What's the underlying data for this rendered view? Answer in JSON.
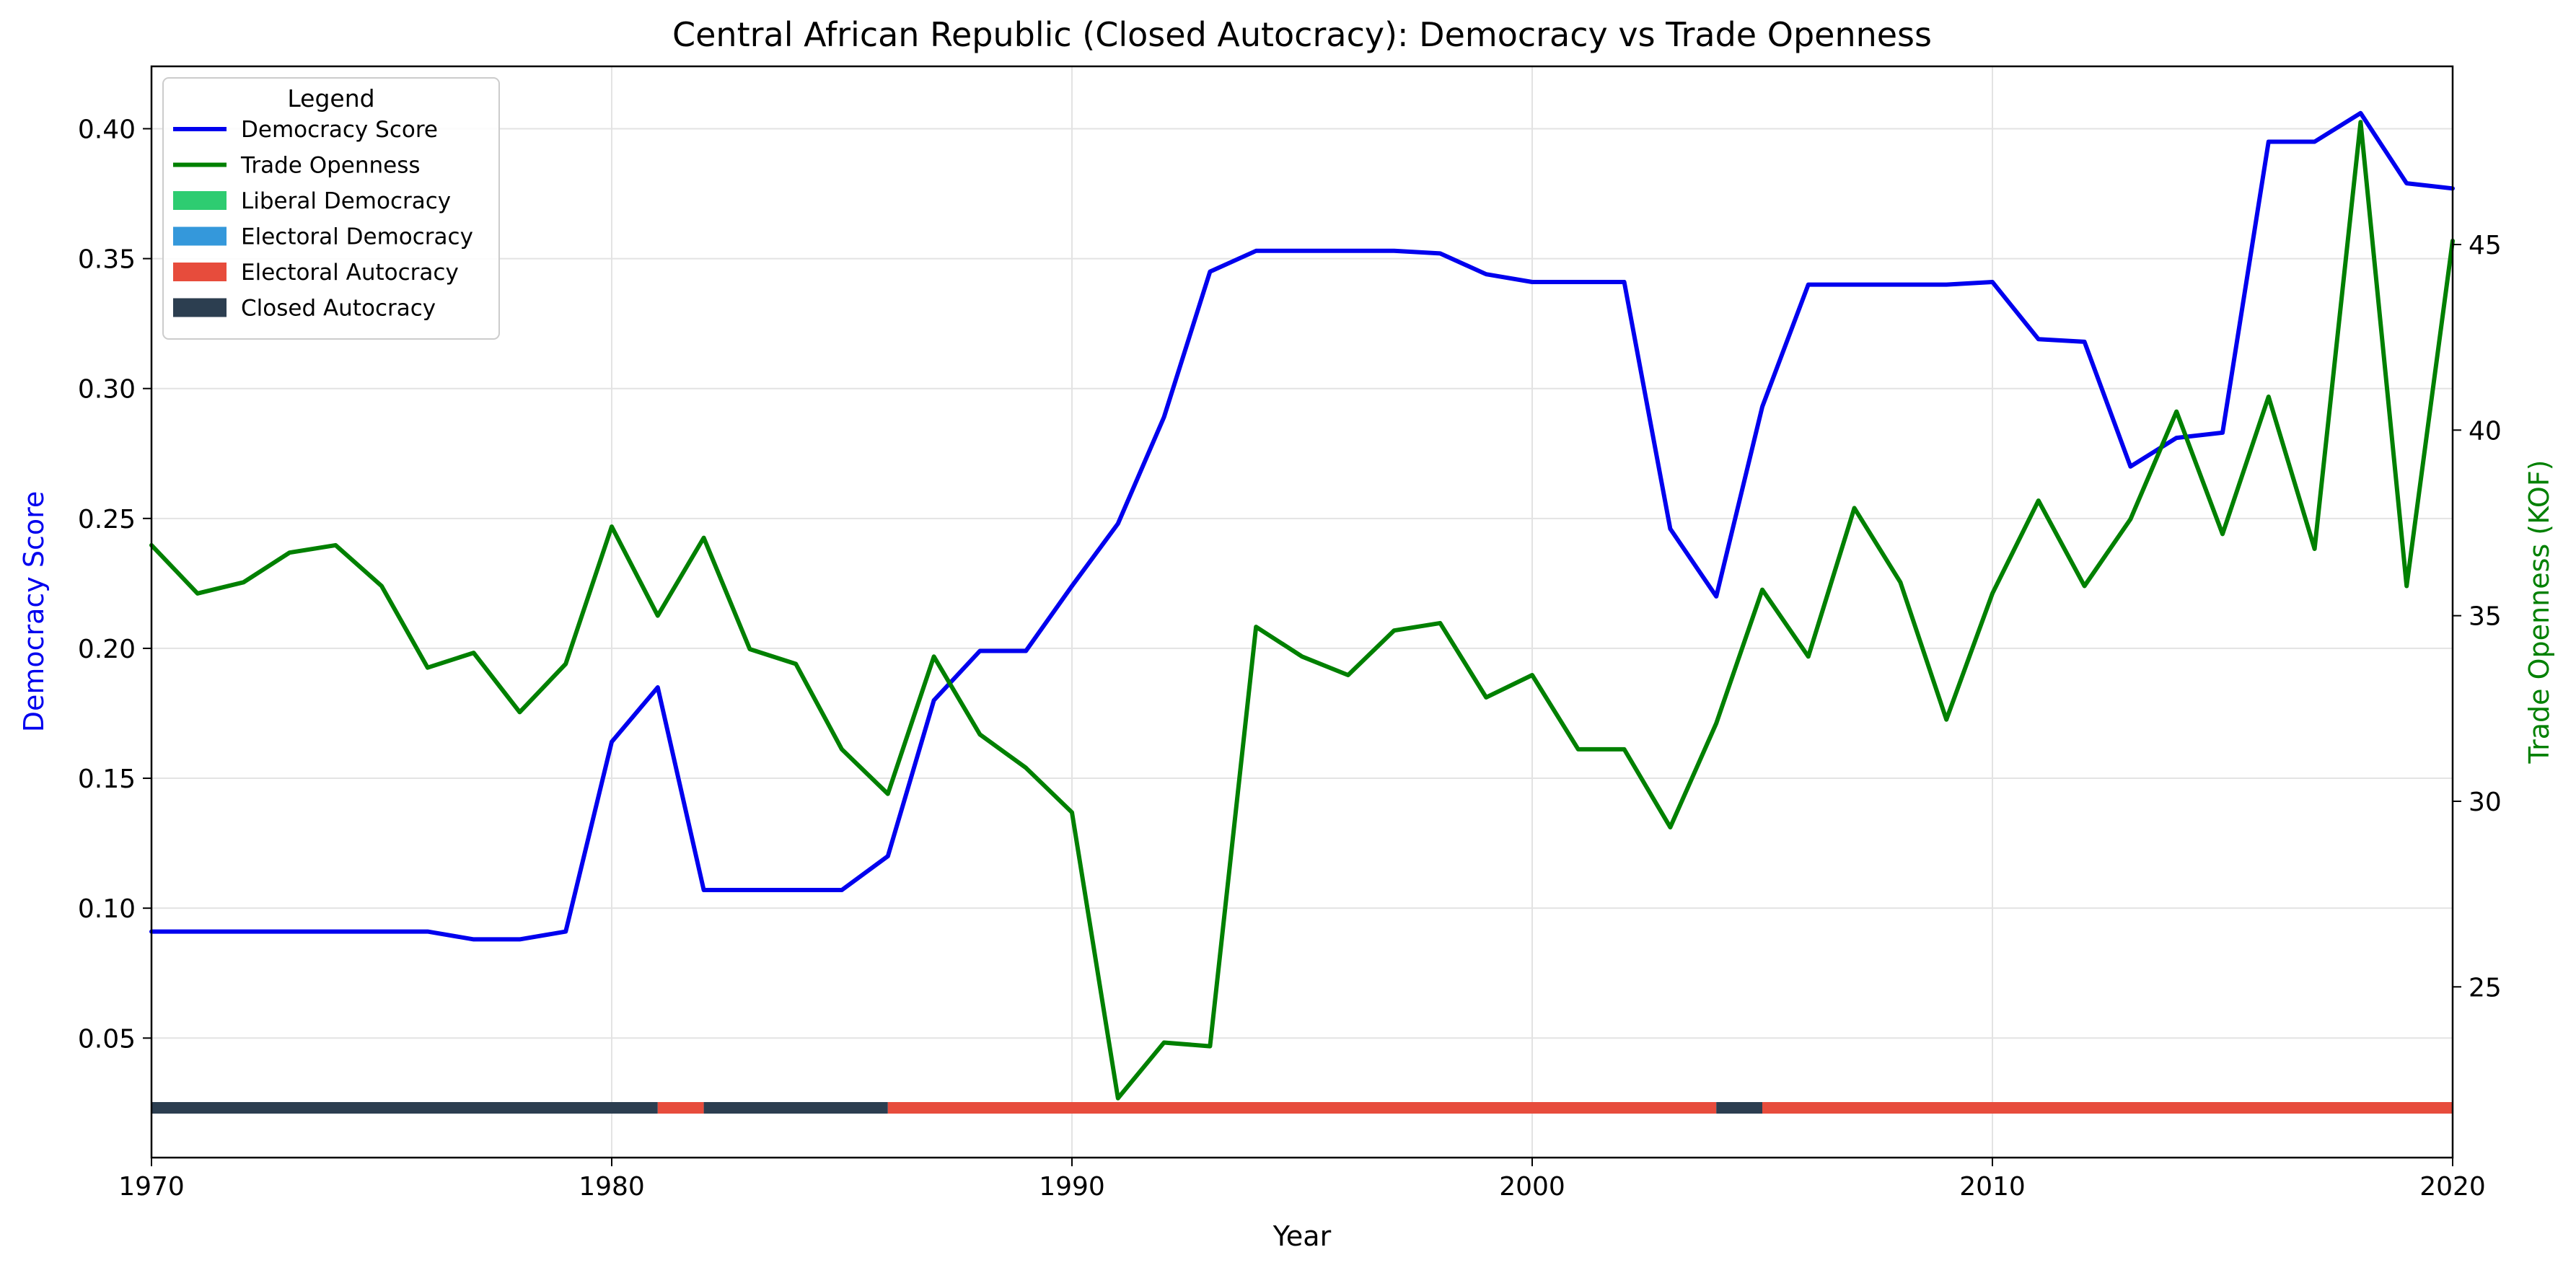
{
  "chart_data": {
    "type": "line",
    "title": "Central African Republic (Closed Autocracy): Democracy vs Trade Openness",
    "xlabel": "Year",
    "ylabel_left": "Democracy Score",
    "ylabel_right": "Trade Openness (KOF)",
    "xlim": [
      1970,
      2020
    ],
    "ylim_left": [
      0.004,
      0.424
    ],
    "ylim_right": [
      20.4,
      49.8
    ],
    "x_ticks": [
      1970,
      1980,
      1990,
      2000,
      2010,
      2020
    ],
    "y_ticks_left": [
      0.05,
      0.1,
      0.15,
      0.2,
      0.25,
      0.3,
      0.35,
      0.4
    ],
    "y_ticks_left_labels": [
      "0.05",
      "0.10",
      "0.15",
      "0.20",
      "0.25",
      "0.30",
      "0.35",
      "0.40"
    ],
    "y_ticks_right": [
      25,
      30,
      35,
      40,
      45
    ],
    "y_ticks_right_labels": [
      "25",
      "30",
      "35",
      "40",
      "45"
    ],
    "grid": true,
    "legend_title": "Legend",
    "legend_placement": "upper-left",
    "x": [
      1970,
      1971,
      1972,
      1973,
      1974,
      1975,
      1976,
      1977,
      1978,
      1979,
      1980,
      1981,
      1982,
      1983,
      1984,
      1985,
      1986,
      1987,
      1988,
      1989,
      1990,
      1991,
      1992,
      1993,
      1994,
      1995,
      1996,
      1997,
      1998,
      1999,
      2000,
      2001,
      2002,
      2003,
      2004,
      2005,
      2006,
      2007,
      2008,
      2009,
      2010,
      2011,
      2012,
      2013,
      2014,
      2015,
      2016,
      2017,
      2018,
      2019,
      2020
    ],
    "series": [
      {
        "name": "Democracy Score",
        "axis": "left",
        "color": "#0000ee",
        "values": [
          0.091,
          0.091,
          0.091,
          0.091,
          0.091,
          0.091,
          0.091,
          0.088,
          0.088,
          0.091,
          0.164,
          0.185,
          0.107,
          0.107,
          0.107,
          0.107,
          0.12,
          0.18,
          0.199,
          0.199,
          0.224,
          0.248,
          0.289,
          0.345,
          0.353,
          0.353,
          0.353,
          0.353,
          0.352,
          0.344,
          0.341,
          0.341,
          0.341,
          0.246,
          0.22,
          0.293,
          0.34,
          0.34,
          0.34,
          0.34,
          0.341,
          0.319,
          0.318,
          0.27,
          0.281,
          0.283,
          0.395,
          0.395,
          0.406,
          0.379,
          0.377
        ]
      },
      {
        "name": "Trade Openness",
        "axis": "right",
        "color": "#008000",
        "values": [
          36.9,
          35.6,
          35.9,
          36.7,
          36.9,
          35.8,
          33.6,
          34.0,
          32.4,
          33.7,
          37.4,
          35.0,
          37.1,
          34.1,
          33.7,
          31.4,
          30.2,
          33.9,
          31.8,
          30.9,
          29.7,
          22.0,
          23.5,
          23.4,
          34.7,
          33.9,
          33.4,
          34.6,
          34.8,
          32.8,
          33.4,
          31.4,
          31.4,
          29.3,
          32.1,
          35.7,
          33.9,
          37.9,
          35.9,
          32.2,
          35.6,
          38.1,
          35.8,
          37.6,
          40.5,
          37.2,
          40.9,
          36.8,
          48.3,
          35.8,
          45.1
        ]
      }
    ],
    "regime_legend": [
      {
        "name": "Liberal Democracy",
        "color": "#2ecc71"
      },
      {
        "name": "Electoral Democracy",
        "color": "#3498db"
      },
      {
        "name": "Electoral Autocracy",
        "color": "#e74c3c"
      },
      {
        "name": "Closed Autocracy",
        "color": "#2c3e50"
      }
    ],
    "regime_periods": [
      {
        "start": 1970,
        "end": 1981,
        "regime": "Closed Autocracy"
      },
      {
        "start": 1981,
        "end": 1982,
        "regime": "Electoral Autocracy"
      },
      {
        "start": 1982,
        "end": 1986,
        "regime": "Closed Autocracy"
      },
      {
        "start": 1986,
        "end": 2004,
        "regime": "Electoral Autocracy"
      },
      {
        "start": 2004,
        "end": 2005,
        "regime": "Closed Autocracy"
      },
      {
        "start": 2005,
        "end": 2020,
        "regime": "Electoral Autocracy"
      }
    ]
  }
}
